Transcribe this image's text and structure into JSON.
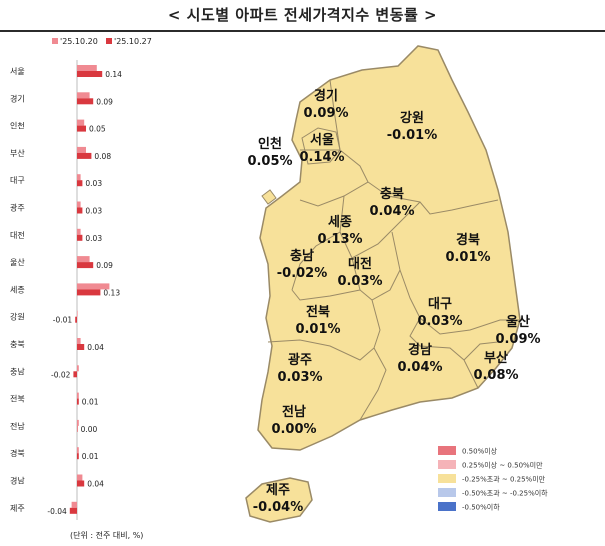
{
  "title": "< 시도별 아파트 전세가격지수 변동률 >",
  "unit_note": "(단위 : 전주 대비, %)",
  "colors": {
    "prev_week": "#f08a92",
    "this_week": "#d9383f",
    "map_fill": "#f7e19a",
    "map_stroke": "#9a8a66"
  },
  "chart_data": {
    "type": "bar",
    "orientation": "horizontal",
    "categories": [
      "서울",
      "경기",
      "인천",
      "부산",
      "대구",
      "광주",
      "대전",
      "울산",
      "세종",
      "강원",
      "충북",
      "충남",
      "전북",
      "전남",
      "경북",
      "경남",
      "제주"
    ],
    "series": [
      {
        "name": "'25.10.20",
        "values": [
          0.11,
          0.07,
          0.04,
          0.05,
          0.02,
          0.02,
          0.02,
          0.07,
          0.18,
          0.0,
          0.02,
          0.01,
          0.01,
          0.01,
          0.01,
          0.03,
          -0.03
        ]
      },
      {
        "name": "'25.10.27",
        "values": [
          0.14,
          0.09,
          0.05,
          0.08,
          0.03,
          0.03,
          0.03,
          0.09,
          0.13,
          -0.01,
          0.04,
          -0.02,
          0.01,
          0.0,
          0.01,
          0.04,
          -0.04
        ]
      }
    ],
    "value_labels": [
      "0.14",
      "0.09",
      "0.05",
      "0.08",
      "0.03",
      "0.03",
      "0.03",
      "0.09",
      "0.13",
      "-0.01",
      "0.04",
      "-0.02",
      "0.01",
      "0.00",
      "0.01",
      "0.04",
      "-0.04"
    ],
    "xlim": [
      -0.05,
      0.2
    ],
    "legend_position": "top-left"
  },
  "map": {
    "regions": [
      {
        "name": "경기",
        "value": "0.09%"
      },
      {
        "name": "강원",
        "value": "-0.01%"
      },
      {
        "name": "인천",
        "value": "0.05%"
      },
      {
        "name": "서울",
        "value": "0.14%"
      },
      {
        "name": "충북",
        "value": "0.04%"
      },
      {
        "name": "세종",
        "value": "0.13%"
      },
      {
        "name": "경북",
        "value": "0.01%"
      },
      {
        "name": "충남",
        "value": "-0.02%"
      },
      {
        "name": "대전",
        "value": "0.03%"
      },
      {
        "name": "대구",
        "value": "0.03%"
      },
      {
        "name": "울산",
        "value": "0.09%"
      },
      {
        "name": "전북",
        "value": "0.01%"
      },
      {
        "name": "광주",
        "value": "0.03%"
      },
      {
        "name": "경남",
        "value": "0.04%"
      },
      {
        "name": "부산",
        "value": "0.08%"
      },
      {
        "name": "전남",
        "value": "0.00%"
      },
      {
        "name": "제주",
        "value": "-0.04%"
      }
    ]
  },
  "color_legend": [
    {
      "label": "0.50%이상",
      "color": "#e8747c"
    },
    {
      "label": "0.25%이상 ~ 0.50%미만",
      "color": "#f5b3b8"
    },
    {
      "label": "-0.25%초과 ~ 0.25%미만",
      "color": "#f7e19a"
    },
    {
      "label": "-0.50%초과 ~ -0.25%이하",
      "color": "#b8c8ea"
    },
    {
      "label": "-0.50%이하",
      "color": "#4a72c9"
    }
  ]
}
